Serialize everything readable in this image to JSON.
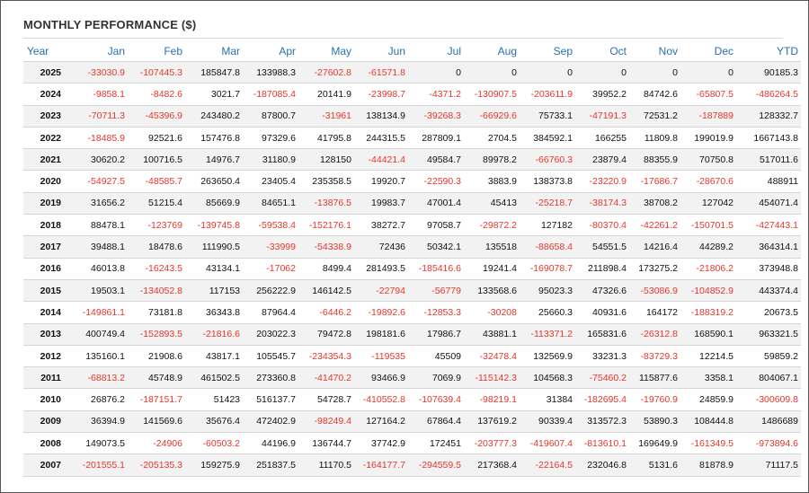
{
  "title": "MONTHLY PERFORMANCE ($)",
  "colors": {
    "header_text": "#2a6fb0",
    "negative": "#e8352b",
    "positive": "#111111",
    "stripe": "#f2f2f2"
  },
  "columns": [
    "Year",
    "Jan",
    "Feb",
    "Mar",
    "Apr",
    "May",
    "Jun",
    "Jul",
    "Aug",
    "Sep",
    "Oct",
    "Nov",
    "Dec",
    "YTD"
  ],
  "rows": [
    [
      "2025",
      "-33030.9",
      "-107445.3",
      "185847.8",
      "133988.3",
      "-27602.8",
      "-61571.8",
      "0",
      "0",
      "0",
      "0",
      "0",
      "0",
      "90185.3"
    ],
    [
      "2024",
      "-9858.1",
      "-8482.6",
      "3021.7",
      "-187085.4",
      "20141.9",
      "-23998.7",
      "-4371.2",
      "-130907.5",
      "-203611.9",
      "39952.2",
      "84742.6",
      "-65807.5",
      "-486264.5"
    ],
    [
      "2023",
      "-70711.3",
      "-45396.9",
      "243480.2",
      "87800.7",
      "-31961",
      "138134.9",
      "-39268.3",
      "-66929.6",
      "75733.1",
      "-47191.3",
      "72531.2",
      "-187889",
      "128332.7"
    ],
    [
      "2022",
      "-18485.9",
      "92521.6",
      "157476.8",
      "97329.6",
      "41795.8",
      "244315.5",
      "287809.1",
      "2704.5",
      "384592.1",
      "166255",
      "11809.8",
      "199019.9",
      "1667143.8"
    ],
    [
      "2021",
      "30620.2",
      "100716.5",
      "14976.7",
      "31180.9",
      "128150",
      "-44421.4",
      "49584.7",
      "89978.2",
      "-66760.3",
      "23879.4",
      "88355.9",
      "70750.8",
      "517011.6"
    ],
    [
      "2020",
      "-54927.5",
      "-48585.7",
      "263650.4",
      "23405.4",
      "235358.5",
      "19920.7",
      "-22590.3",
      "3883.9",
      "138373.8",
      "-23220.9",
      "-17686.7",
      "-28670.6",
      "488911"
    ],
    [
      "2019",
      "31656.2",
      "51215.4",
      "85669.9",
      "84651.1",
      "-13876.5",
      "19983.7",
      "47001.4",
      "45413",
      "-25218.7",
      "-38174.3",
      "38708.2",
      "127042",
      "454071.4"
    ],
    [
      "2018",
      "88478.1",
      "-123769",
      "-139745.8",
      "-59538.4",
      "-152176.1",
      "38272.7",
      "97058.7",
      "-29872.2",
      "127182",
      "-80370.4",
      "-42261.2",
      "-150701.5",
      "-427443.1"
    ],
    [
      "2017",
      "39488.1",
      "18478.6",
      "111990.5",
      "-33999",
      "-54338.9",
      "72436",
      "50342.1",
      "135518",
      "-88658.4",
      "54551.5",
      "14216.4",
      "44289.2",
      "364314.1"
    ],
    [
      "2016",
      "46013.8",
      "-16243.5",
      "43134.1",
      "-17062",
      "8499.4",
      "281493.5",
      "-185416.6",
      "19241.4",
      "-169078.7",
      "211898.4",
      "173275.2",
      "-21806.2",
      "373948.8"
    ],
    [
      "2015",
      "19503.1",
      "-134052.8",
      "117153",
      "256222.9",
      "146142.5",
      "-22794",
      "-56779",
      "133568.6",
      "95023.3",
      "47326.6",
      "-53086.9",
      "-104852.9",
      "443374.4"
    ],
    [
      "2014",
      "-149861.1",
      "73181.8",
      "36343.8",
      "87964.4",
      "-6446.2",
      "-19892.6",
      "-12853.3",
      "-30208",
      "25660.3",
      "40931.6",
      "164172",
      "-188319.2",
      "20673.5"
    ],
    [
      "2013",
      "400749.4",
      "-152893.5",
      "-21816.6",
      "203022.3",
      "79472.8",
      "198181.6",
      "17986.7",
      "43881.1",
      "-113371.2",
      "165831.6",
      "-26312.8",
      "168590.1",
      "963321.5"
    ],
    [
      "2012",
      "135160.1",
      "21908.6",
      "43817.1",
      "105545.7",
      "-234354.3",
      "-119535",
      "45509",
      "-32478.4",
      "132569.9",
      "33231.3",
      "-83729.3",
      "12214.5",
      "59859.2"
    ],
    [
      "2011",
      "-68813.2",
      "45748.9",
      "461502.5",
      "273360.8",
      "-41470.2",
      "93466.9",
      "7069.9",
      "-115142.3",
      "104568.3",
      "-75460.2",
      "115877.6",
      "3358.1",
      "804067.1"
    ],
    [
      "2010",
      "26876.2",
      "-187151.7",
      "51423",
      "516137.7",
      "54728.7",
      "-410552.8",
      "-107639.4",
      "-98219.1",
      "31384",
      "-182695.4",
      "-19760.9",
      "24859.9",
      "-300609.8"
    ],
    [
      "2009",
      "36394.9",
      "141569.6",
      "35676.4",
      "472402.9",
      "-98249.4",
      "127164.2",
      "67864.4",
      "137619.2",
      "90339.4",
      "313572.3",
      "53890.3",
      "108444.8",
      "1486689"
    ],
    [
      "2008",
      "149073.5",
      "-24906",
      "-60503.2",
      "44196.9",
      "136744.7",
      "37742.9",
      "172451",
      "-203777.3",
      "-419607.4",
      "-813610.1",
      "169649.9",
      "-161349.5",
      "-973894.6"
    ],
    [
      "2007",
      "-201555.1",
      "-205135.3",
      "159275.9",
      "251837.5",
      "11170.5",
      "-164177.7",
      "-294559.5",
      "217368.4",
      "-22164.5",
      "232046.8",
      "5131.6",
      "81878.9",
      "71117.5"
    ]
  ]
}
